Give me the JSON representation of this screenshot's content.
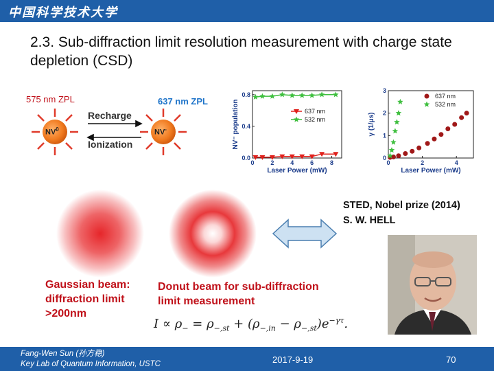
{
  "header": {
    "logo_text": "中国科学技术大学"
  },
  "slide": {
    "title": "2.3. Sub-diffraction limit resolution measurement with charge state depletion (CSD)"
  },
  "nv_diagram": {
    "zpl_left": "575 nm ZPL",
    "zpl_right": "637 nm ZPL",
    "recharge": "Recharge",
    "ionization": "Ionization",
    "nv0": "NV",
    "nv0_sup": "0",
    "nvm": "NV",
    "nvm_sup": "-"
  },
  "chart_data": [
    {
      "type": "line",
      "ylabel": "NV⁻ population",
      "xlabel": "Laser Power (mW)",
      "x_ticks": [
        "0",
        "2",
        "4",
        "6",
        "8"
      ],
      "y_ticks": [
        "0.0",
        "0.4",
        "0.8"
      ],
      "xlim": [
        0,
        9
      ],
      "ylim": [
        0,
        0.85
      ],
      "series": [
        {
          "name": "637 nm",
          "color": "#e0201b",
          "marker": "triangle-down",
          "x": [
            0.3,
            1,
            2,
            3,
            4,
            5,
            6,
            7,
            8.4
          ],
          "y": [
            0.01,
            0.01,
            0.01,
            0.02,
            0.02,
            0.02,
            0.02,
            0.05,
            0.05
          ]
        },
        {
          "name": "532 nm",
          "color": "#3fbf3f",
          "marker": "star",
          "x": [
            0.3,
            1,
            2,
            3,
            4,
            5,
            6,
            7,
            8.4
          ],
          "y": [
            0.77,
            0.78,
            0.78,
            0.8,
            0.79,
            0.79,
            0.79,
            0.8,
            0.8
          ]
        }
      ]
    },
    {
      "type": "scatter",
      "ylabel": "γ (1/μs)",
      "xlabel": "Laser Power (mW)",
      "x_ticks": [
        "0",
        "2",
        "4"
      ],
      "y_ticks": [
        "0",
        "1",
        "2",
        "3"
      ],
      "xlim": [
        0,
        5
      ],
      "ylim": [
        0,
        3
      ],
      "series": [
        {
          "name": "637 nm",
          "color": "#a01818",
          "marker": "circle",
          "x": [
            0.1,
            0.3,
            0.6,
            1.0,
            1.4,
            1.8,
            2.3,
            2.7,
            3.1,
            3.5,
            3.9,
            4.3,
            4.6
          ],
          "y": [
            0.03,
            0.05,
            0.1,
            0.2,
            0.3,
            0.45,
            0.65,
            0.85,
            1.05,
            1.3,
            1.5,
            1.8,
            2.0
          ]
        },
        {
          "name": "532 nm",
          "color": "#3fbf3f",
          "marker": "star",
          "x": [
            0.1,
            0.2,
            0.3,
            0.4,
            0.5,
            0.6,
            0.7
          ],
          "y": [
            0.1,
            0.35,
            0.7,
            1.2,
            1.6,
            2.0,
            2.5
          ]
        }
      ]
    }
  ],
  "beams": {
    "gaussian_label": "Gaussian beam: diffraction limit >200nm",
    "donut_label": "Donut beam for sub-diffraction limit measurement"
  },
  "sted": {
    "line1": "STED, Nobel prize (2014)",
    "line2": "S. W. HELL"
  },
  "formula": {
    "lhs": "I ∝ ρ",
    "sub1": "−",
    "eq": " = ρ",
    "sub2": "−,st",
    "plus": " + (ρ",
    "sub3": "−,in",
    "minus": " − ρ",
    "sub4": "−,st",
    "close": ")e",
    "exp": "−γτ",
    "dot": "."
  },
  "footer": {
    "author": "Fang-Wen Sun (孙方稳)",
    "affiliation": "Key Lab of Quantum Information, USTC",
    "date": "2017-9-19",
    "page": "70"
  }
}
